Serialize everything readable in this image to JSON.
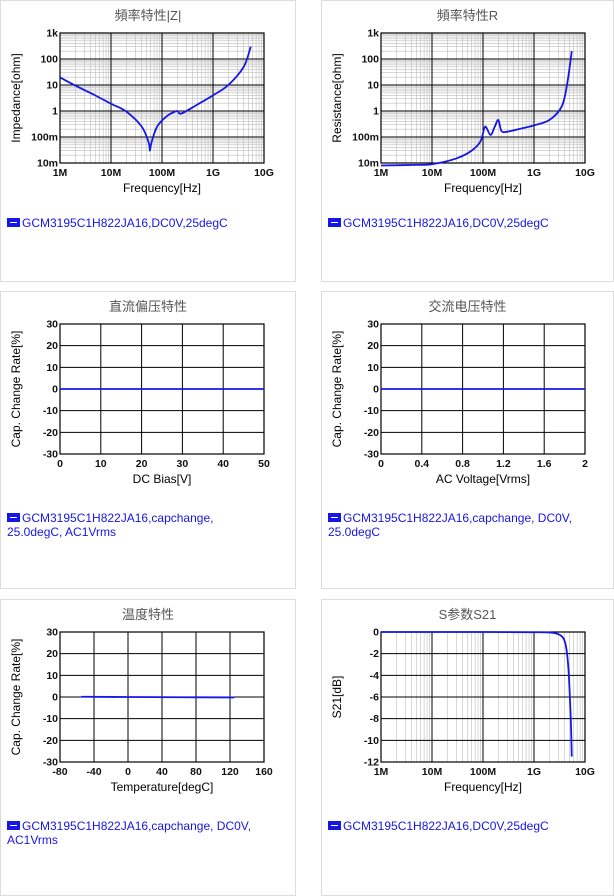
{
  "colors": {
    "curve": "#1616e6",
    "grid_major": "#000000",
    "grid_minor": "#bdbdbd",
    "axis_label": "#000000"
  },
  "chart_data": [
    {
      "type": "line",
      "title": "頻率特性|Z|",
      "xlabel": "Frequency[Hz]",
      "ylabel": "Impedance[ohm]",
      "xscale": "log",
      "yscale": "log",
      "xlim": [
        1000000,
        10000000000
      ],
      "ylim": [
        0.01,
        1000
      ],
      "xticks": [
        {
          "v": 1000000,
          "label": "1M"
        },
        {
          "v": 10000000,
          "label": "10M"
        },
        {
          "v": 100000000,
          "label": "100M"
        },
        {
          "v": 1000000000,
          "label": "1G"
        },
        {
          "v": 10000000000,
          "label": "10G"
        }
      ],
      "yticks": [
        {
          "v": 0.01,
          "label": "10m"
        },
        {
          "v": 0.1,
          "label": "100m"
        },
        {
          "v": 1,
          "label": "1"
        },
        {
          "v": 10,
          "label": "10"
        },
        {
          "v": 100,
          "label": "100"
        },
        {
          "v": 1000,
          "label": "1k"
        }
      ],
      "minor_grid": true,
      "legend": "GCM3195C1H822JA16,DC0V,25degC",
      "series": [
        {
          "x": [
            1000000,
            2000000,
            5000000,
            10000000,
            20000000,
            40000000,
            55000000,
            58000000,
            62000000,
            80000000,
            120000000,
            160000000,
            200000000,
            240000000,
            500000000,
            1000000000,
            2000000000,
            4000000000,
            5500000000
          ],
          "y": [
            19.5,
            9.5,
            3.9,
            1.9,
            0.95,
            0.25,
            0.06,
            0.03,
            0.06,
            0.25,
            0.6,
            0.85,
            1.0,
            0.8,
            1.8,
            4.0,
            10,
            50,
            300
          ]
        }
      ]
    },
    {
      "type": "line",
      "title": "頻率特性R",
      "xlabel": "Frequency[Hz]",
      "ylabel": "Resistance[ohm]",
      "xscale": "log",
      "yscale": "log",
      "xlim": [
        1000000,
        10000000000
      ],
      "ylim": [
        0.01,
        1000
      ],
      "xticks": [
        {
          "v": 1000000,
          "label": "1M"
        },
        {
          "v": 10000000,
          "label": "10M"
        },
        {
          "v": 100000000,
          "label": "100M"
        },
        {
          "v": 1000000000,
          "label": "1G"
        },
        {
          "v": 10000000000,
          "label": "10G"
        }
      ],
      "yticks": [
        {
          "v": 0.01,
          "label": "10m"
        },
        {
          "v": 0.1,
          "label": "100m"
        },
        {
          "v": 1,
          "label": "1"
        },
        {
          "v": 10,
          "label": "10"
        },
        {
          "v": 100,
          "label": "100"
        },
        {
          "v": 1000,
          "label": "1k"
        }
      ],
      "minor_grid": true,
      "legend": "GCM3195C1H822JA16,DC0V,25degC",
      "series": [
        {
          "x": [
            1000000,
            5000000,
            10000000,
            30000000,
            60000000,
            90000000,
            110000000,
            140000000,
            170000000,
            200000000,
            230000000,
            300000000,
            500000000,
            1000000000,
            2000000000,
            3500000000,
            4500000000,
            5500000000
          ],
          "y": [
            0.008,
            0.0085,
            0.009,
            0.015,
            0.03,
            0.07,
            0.25,
            0.12,
            0.25,
            0.45,
            0.17,
            0.16,
            0.2,
            0.28,
            0.45,
            1.5,
            12,
            200
          ]
        }
      ]
    },
    {
      "type": "line",
      "title": "直流偏压特性",
      "xlabel": "DC Bias[V]",
      "ylabel": "Cap. Change Rate[%]",
      "xlim": [
        0,
        50
      ],
      "ylim": [
        -30,
        30
      ],
      "xticks": [
        {
          "v": 0,
          "label": "0"
        },
        {
          "v": 10,
          "label": "10"
        },
        {
          "v": 20,
          "label": "20"
        },
        {
          "v": 30,
          "label": "30"
        },
        {
          "v": 40,
          "label": "40"
        },
        {
          "v": 50,
          "label": "50"
        }
      ],
      "yticks": [
        {
          "v": -30,
          "label": "-30"
        },
        {
          "v": -20,
          "label": "-20"
        },
        {
          "v": -10,
          "label": "-10"
        },
        {
          "v": 0,
          "label": "0"
        },
        {
          "v": 10,
          "label": "10"
        },
        {
          "v": 20,
          "label": "20"
        },
        {
          "v": 30,
          "label": "30"
        }
      ],
      "minor_grid": false,
      "legend": "GCM3195C1H822JA16,capchange, 25.0degC, AC1Vrms",
      "series": [
        {
          "x": [
            0,
            50
          ],
          "y": [
            0,
            0
          ]
        }
      ]
    },
    {
      "type": "line",
      "title": "交流电压特性",
      "xlabel": "AC Voltage[Vrms]",
      "ylabel": "Cap. Change Rate[%]",
      "xlim": [
        0,
        2
      ],
      "ylim": [
        -30,
        30
      ],
      "xticks": [
        {
          "v": 0,
          "label": "0"
        },
        {
          "v": 0.4,
          "label": "0.4"
        },
        {
          "v": 0.8,
          "label": "0.8"
        },
        {
          "v": 1.2,
          "label": "1.2"
        },
        {
          "v": 1.6,
          "label": "1.6"
        },
        {
          "v": 2,
          "label": "2"
        }
      ],
      "yticks": [
        {
          "v": -30,
          "label": "-30"
        },
        {
          "v": -20,
          "label": "-20"
        },
        {
          "v": -10,
          "label": "-10"
        },
        {
          "v": 0,
          "label": "0"
        },
        {
          "v": 10,
          "label": "10"
        },
        {
          "v": 20,
          "label": "20"
        },
        {
          "v": 30,
          "label": "30"
        }
      ],
      "minor_grid": false,
      "legend": "GCM3195C1H822JA16,capchange, DC0V, 25.0degC",
      "series": [
        {
          "x": [
            0,
            2
          ],
          "y": [
            0,
            0
          ]
        }
      ]
    },
    {
      "type": "line",
      "title": "温度特性",
      "xlabel": "Temperature[degC]",
      "ylabel": "Cap. Change Rate[%]",
      "xlim": [
        -80,
        160
      ],
      "ylim": [
        -30,
        30
      ],
      "xticks": [
        {
          "v": -80,
          "label": "-80"
        },
        {
          "v": -40,
          "label": "-40"
        },
        {
          "v": 0,
          "label": "0"
        },
        {
          "v": 40,
          "label": "40"
        },
        {
          "v": 80,
          "label": "80"
        },
        {
          "v": 120,
          "label": "120"
        },
        {
          "v": 160,
          "label": "160"
        }
      ],
      "yticks": [
        {
          "v": -30,
          "label": "-30"
        },
        {
          "v": -20,
          "label": "-20"
        },
        {
          "v": -10,
          "label": "-10"
        },
        {
          "v": 0,
          "label": "0"
        },
        {
          "v": 10,
          "label": "10"
        },
        {
          "v": 20,
          "label": "20"
        },
        {
          "v": 30,
          "label": "30"
        }
      ],
      "minor_grid": false,
      "legend": "GCM3195C1H822JA16,capchange, DC0V, AC1Vrms",
      "series": [
        {
          "x": [
            -55,
            0,
            60,
            125
          ],
          "y": [
            0.1,
            0,
            -0.1,
            -0.2
          ]
        }
      ]
    },
    {
      "type": "line",
      "title": "S参数S21",
      "xlabel": "Frequency[Hz]",
      "ylabel": "S21[dB]",
      "xscale": "log",
      "xlim": [
        1000000,
        10000000000
      ],
      "ylim": [
        -12,
        0
      ],
      "xticks": [
        {
          "v": 1000000,
          "label": "1M"
        },
        {
          "v": 10000000,
          "label": "10M"
        },
        {
          "v": 100000000,
          "label": "100M"
        },
        {
          "v": 1000000000,
          "label": "1G"
        },
        {
          "v": 10000000000,
          "label": "10G"
        }
      ],
      "yticks": [
        {
          "v": -12,
          "label": "-12"
        },
        {
          "v": -10,
          "label": "-10"
        },
        {
          "v": -8,
          "label": "-8"
        },
        {
          "v": -6,
          "label": "-6"
        },
        {
          "v": -4,
          "label": "-4"
        },
        {
          "v": -2,
          "label": "-2"
        },
        {
          "v": 0,
          "label": "0"
        }
      ],
      "minor_grid": true,
      "legend": "GCM3195C1H822JA16,DC0V,25degC",
      "series": [
        {
          "x": [
            1000000,
            100000000,
            1000000000,
            2000000000,
            3000000000,
            3800000000,
            4300000000,
            4700000000,
            5000000000,
            5300000000,
            5500000000
          ],
          "y": [
            0,
            0,
            -0.02,
            -0.05,
            -0.2,
            -0.6,
            -1.5,
            -3.2,
            -5.5,
            -8.5,
            -11.5
          ]
        }
      ]
    }
  ]
}
